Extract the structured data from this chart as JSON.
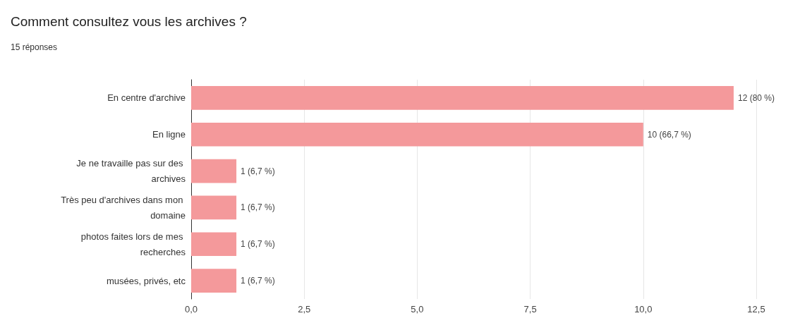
{
  "chart_data": {
    "type": "bar",
    "orientation": "horizontal",
    "title": "Comment consultez vous les archives ?",
    "subtitle": "15 réponses",
    "categories": [
      "En centre d'archive",
      "En ligne",
      "Je ne travaille pas sur des archives",
      "Très peu d'archives dans mon domaine",
      "photos faites lors de mes recherches",
      "musées, privés, etc"
    ],
    "values": [
      12,
      10,
      1,
      1,
      1,
      1
    ],
    "value_labels": [
      "12 (80 %)",
      "10 (66,7 %)",
      "1 (6,7 %)",
      "1 (6,7 %)",
      "1 (6,7 %)",
      "1 (6,7 %)"
    ],
    "color": "#f4999b",
    "xlim": [
      0,
      12.5
    ],
    "xticks": [
      {
        "value": 0,
        "label": "0,0"
      },
      {
        "value": 2.5,
        "label": "2,5"
      },
      {
        "value": 5,
        "label": "5,0"
      },
      {
        "value": 7.5,
        "label": "7,5"
      },
      {
        "value": 10,
        "label": "10,0"
      },
      {
        "value": 12.5,
        "label": "12,5"
      }
    ],
    "grid": "x"
  }
}
